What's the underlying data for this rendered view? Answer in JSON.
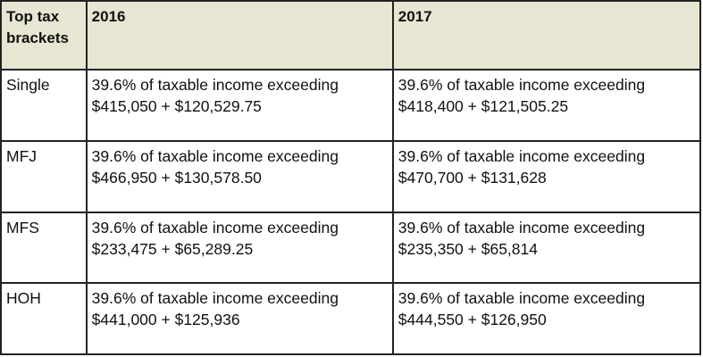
{
  "table": {
    "headers": {
      "bracket_line1": "Top tax",
      "bracket_line2": "brackets",
      "year_a": "2016",
      "year_b": "2017"
    },
    "rows": [
      {
        "status": "Single",
        "y2016_line1": "39.6% of taxable income exceeding",
        "y2016_line2": "$415,050 + $120,529.75",
        "y2017_line1": "39.6% of taxable income exceeding",
        "y2017_line2": "$418,400 + $121,505.25"
      },
      {
        "status": "MFJ",
        "y2016_line1": "39.6% of taxable income exceeding",
        "y2016_line2": "$466,950 + $130,578.50",
        "y2017_line1": "39.6% of taxable income exceeding",
        "y2017_line2": "$470,700 + $131,628"
      },
      {
        "status": "MFS",
        "y2016_line1": "39.6% of taxable income exceeding",
        "y2016_line2": "$233,475 + $65,289.25",
        "y2017_line1": "39.6% of taxable income exceeding",
        "y2017_line2": "$235,350 + $65,814"
      },
      {
        "status": "HOH",
        "y2016_line1": "39.6% of taxable income exceeding",
        "y2016_line2": "$441,000 + $125,936",
        "y2017_line1": "39.6% of taxable income exceeding",
        "y2017_line2": "$444,550 + $126,950"
      }
    ]
  },
  "colors": {
    "header_background": "#e6e6d2",
    "border": "#222222",
    "text": "#111111"
  }
}
